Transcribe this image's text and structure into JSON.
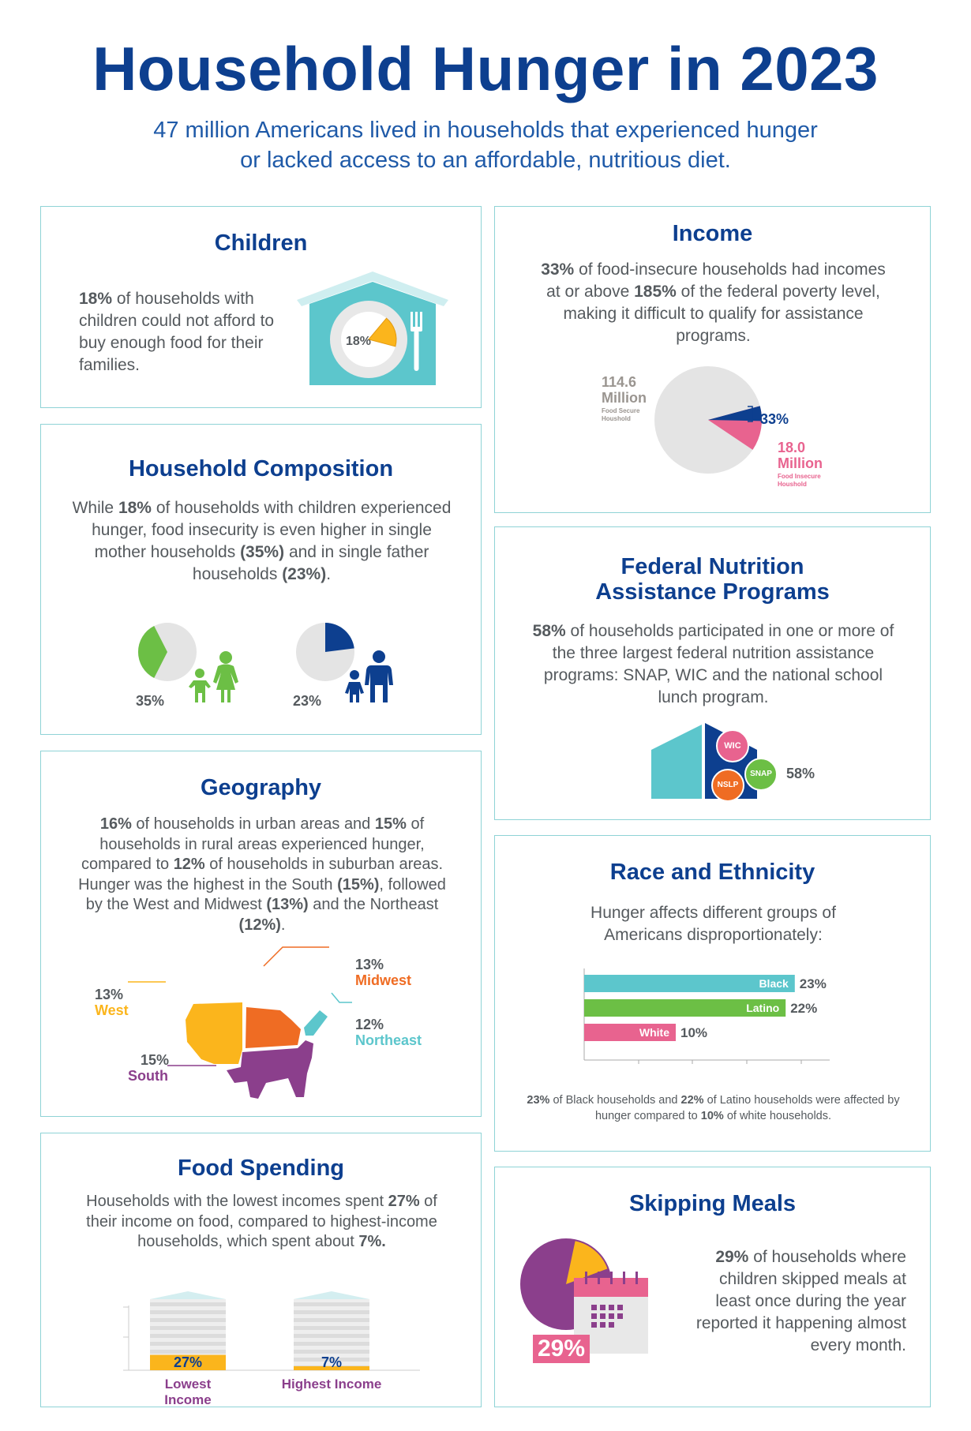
{
  "header": {
    "title": "Household Hunger in 2023",
    "subtitle_line1": "47 million Americans lived in households that experienced hunger",
    "subtitle_line2": "or lacked access to an affordable, nutritious diet."
  },
  "colors": {
    "navy": "#0d3f8f",
    "teal": "#5cc6cc",
    "green": "#6cbf45",
    "orange": "#ef6c23",
    "yellow": "#fbb51c",
    "purple": "#8b3f8c",
    "pink": "#e8638f",
    "gray": "#e4e4e4"
  },
  "children": {
    "title": "Children",
    "pct": "18%",
    "text": "of households with children could not afford to buy enough food for their families.",
    "plate_label": "18%",
    "share": 0.18
  },
  "income": {
    "title": "Income",
    "pct1": "33%",
    "text1": "of food-insecure households had incomes at or above",
    "pct2": "185%",
    "text2": "of the federal poverty level, making it difficult to qualify for assistance programs.",
    "secure_value": "114.6",
    "secure_unit": "Million",
    "secure_caption1": "Food Secure",
    "secure_caption2": "Houshold",
    "share_label": "33%",
    "insecure_value": "18.0",
    "insecure_unit": "Million",
    "insecure_caption1": "Food Insecure",
    "insecure_caption2": "Houshold"
  },
  "composition": {
    "title": "Household Composition",
    "text_a": "While",
    "pct_a": "18%",
    "text_b": "of households with children experienced hunger, food insecurity is even higher in single mother households",
    "pct_b": "(35%)",
    "text_c": "and in single father households",
    "pct_c": "(23%)",
    "text_d": ".",
    "mother_label": "35%",
    "father_label": "23%",
    "mother_share": 0.35,
    "father_share": 0.23
  },
  "federal": {
    "title_line1": "Federal Nutrition",
    "title_line2": "Assistance Programs",
    "pct": "58%",
    "text": "of households participated in one or more of the three largest federal nutrition assistance programs: SNAP, WIC and the national school lunch program.",
    "wic": "WIC",
    "snap": "SNAP",
    "nslp": "NSLP",
    "share_label": "58%"
  },
  "geography": {
    "title": "Geography",
    "p1": "16%",
    "t1": "of households in urban areas and",
    "p2": "15%",
    "t2": "of households in rural areas experienced hunger, compared to",
    "p3": "12%",
    "t3": "of households in suburban areas. Hunger was the highest in the South",
    "p4": "(15%)",
    "t4": ", followed by the West and Midwest",
    "p5": "(13%)",
    "t5": "and the Northeast",
    "p6": "(12%)",
    "t6": ".",
    "midwest_pct": "13%",
    "midwest": "Midwest",
    "west_pct": "13%",
    "west": "West",
    "northeast_pct": "12%",
    "northeast": "Northeast",
    "south_pct": "15%",
    "south": "South"
  },
  "race": {
    "title": "Race and Ethnicity",
    "text": "Hunger affects different groups of Americans disproportionately:",
    "note_p1": "23%",
    "note_t1": "of Black households and",
    "note_p2": "22%",
    "note_t2": "of Latino households were affected by hunger compared to",
    "note_p3": "10%",
    "note_t3": "of white households."
  },
  "chart_data": {
    "type": "bar",
    "orientation": "horizontal",
    "categories": [
      "Black",
      "Latino",
      "White"
    ],
    "values": [
      23,
      22,
      10
    ],
    "labels": [
      "23%",
      "22%",
      "10%"
    ],
    "colors": [
      "#5cc6cc",
      "#6cbf45",
      "#e8638f"
    ],
    "xlim": [
      0,
      25
    ]
  },
  "spending": {
    "title": "Food Spending",
    "t1": "Households with the lowest incomes spent",
    "p1": "27%",
    "t2": "of their income on food, compared to highest-income households, which spent about",
    "p2": "7%.",
    "low_value": "27%",
    "high_value": "7%",
    "low_label": "Lowest Income",
    "high_label": "Highest Income",
    "low_share": 0.27,
    "high_share": 0.07
  },
  "skipping": {
    "title": "Skipping Meals",
    "pct": "29%",
    "text": "of households where children skipped meals at least once during the year reported it happening almost every month.",
    "big_label": "29%",
    "share": 0.29
  }
}
